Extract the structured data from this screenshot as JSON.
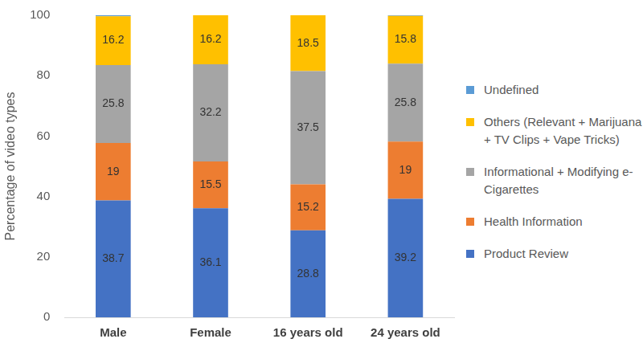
{
  "chart_data": {
    "type": "bar",
    "stacked": true,
    "y_label": "Percentage of video types",
    "categories": [
      "Male",
      "Female",
      "16 years old",
      "24 years old"
    ],
    "series": [
      {
        "name": "Product Review",
        "color": "#4472c4",
        "values": [
          38.7,
          36.1,
          28.8,
          39.2
        ]
      },
      {
        "name": "Health Information",
        "color": "#ed7d31",
        "values": [
          19,
          15.5,
          15.2,
          19
        ]
      },
      {
        "name": "Informational + Modifying e-Cigarettes",
        "color": "#a5a5a5",
        "values": [
          25.8,
          32.2,
          37.5,
          25.8
        ]
      },
      {
        "name": "Others (Relevant + Marijuana + TV Clips + Vape Tricks)",
        "color": "#ffc000",
        "values": [
          16.2,
          16.2,
          18.5,
          15.8
        ]
      },
      {
        "name": "Undefined",
        "color": "#5b9bd5",
        "values": [
          0.3,
          0,
          0,
          0.2
        ],
        "data_labels": false
      }
    ],
    "ylim": [
      0,
      100
    ],
    "yticks": [
      0,
      20,
      40,
      60,
      80,
      100
    ],
    "grid": false,
    "legend": "right",
    "data_labels": true
  }
}
